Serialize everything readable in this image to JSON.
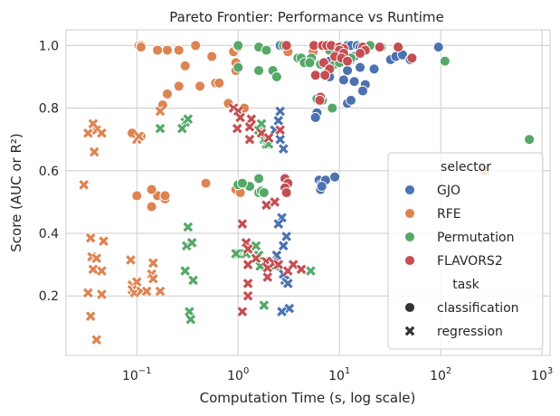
{
  "chart_data": {
    "type": "scatter",
    "title": "Pareto Frontier: Performance vs Runtime",
    "xlabel": "Computation Time (s, log scale)",
    "ylabel": "Score (AUC or R²)",
    "x_scale": "log",
    "xlim": [
      0.02,
      1200
    ],
    "ylim": [
      0.01,
      1.05
    ],
    "x_ticks": [
      {
        "value": 0.1,
        "base": "10",
        "exp": "−1"
      },
      {
        "value": 1,
        "base": "10",
        "exp": "0"
      },
      {
        "value": 10,
        "base": "10",
        "exp": "1"
      },
      {
        "value": 100,
        "base": "10",
        "exp": "2"
      },
      {
        "value": 1000,
        "base": "10",
        "exp": "3"
      }
    ],
    "y_ticks": [
      "0.2",
      "0.4",
      "0.6",
      "0.8",
      "1.0"
    ],
    "grid": true,
    "legend": {
      "placement": "lower-right",
      "hue_title": "selector",
      "style_title": "task",
      "styles": [
        {
          "name": "classification",
          "marker": "circle"
        },
        {
          "name": "regression",
          "marker": "x"
        }
      ]
    },
    "series": [
      {
        "name": "GJO",
        "color": "#4c72b0",
        "classification": [
          [
            2.6,
            1.0
          ],
          [
            12,
            1.0
          ],
          [
            13,
            1.0
          ],
          [
            15,
            1.0
          ],
          [
            16,
            0.995
          ],
          [
            18,
            0.995
          ],
          [
            95,
            0.995
          ],
          [
            10,
            0.975
          ],
          [
            11,
            0.985
          ],
          [
            13,
            0.955
          ],
          [
            14,
            0.965
          ],
          [
            8,
            0.95
          ],
          [
            12,
            0.92
          ],
          [
            16,
            0.93
          ],
          [
            22,
            0.925
          ],
          [
            32,
            0.955
          ],
          [
            36,
            0.965
          ],
          [
            42,
            0.97
          ],
          [
            50,
            0.955
          ],
          [
            8,
            0.9
          ],
          [
            14,
            0.885
          ],
          [
            18,
            0.875
          ],
          [
            17,
            0.855
          ],
          [
            11,
            0.89
          ],
          [
            6,
            0.785
          ],
          [
            12,
            0.815
          ],
          [
            13,
            0.825
          ],
          [
            5.8,
            0.77
          ],
          [
            6.3,
            0.57
          ],
          [
            6.6,
            0.555
          ],
          [
            7.3,
            0.57
          ],
          [
            9,
            0.58
          ],
          [
            6.5,
            0.54
          ],
          [
            6.7,
            0.55
          ]
        ],
        "regression": [
          [
            2.6,
            0.79
          ],
          [
            2.5,
            0.76
          ],
          [
            2.3,
            0.73
          ],
          [
            2.6,
            0.7
          ],
          [
            2.8,
            0.67
          ],
          [
            2.7,
            0.45
          ],
          [
            2.5,
            0.43
          ],
          [
            3,
            0.39
          ],
          [
            2.8,
            0.36
          ],
          [
            2.4,
            0.33
          ],
          [
            2.2,
            0.31
          ],
          [
            2.9,
            0.25
          ],
          [
            3.1,
            0.24
          ],
          [
            3.2,
            0.16
          ],
          [
            2.7,
            0.15
          ],
          [
            2.8,
            0.27
          ]
        ]
      },
      {
        "name": "RFE",
        "color": "#dd8452",
        "classification": [
          [
            0.105,
            1.0
          ],
          [
            0.11,
            1.0
          ],
          [
            0.2,
            0.985
          ],
          [
            0.26,
            0.985
          ],
          [
            0.38,
            1.0
          ],
          [
            0.11,
            0.995
          ],
          [
            0.16,
            0.985
          ],
          [
            0.55,
            0.965
          ],
          [
            0.9,
            0.98
          ],
          [
            1.0,
            0.995
          ],
          [
            0.95,
            0.945
          ],
          [
            0.3,
            0.935
          ],
          [
            0.95,
            0.92
          ],
          [
            0.6,
            0.88
          ],
          [
            0.65,
            0.88
          ],
          [
            0.26,
            0.87
          ],
          [
            0.42,
            0.87
          ],
          [
            0.2,
            0.845
          ],
          [
            0.18,
            0.81
          ],
          [
            0.8,
            0.815
          ],
          [
            1.15,
            0.8
          ],
          [
            0.09,
            0.72
          ],
          [
            0.11,
            0.71
          ],
          [
            0.48,
            0.56
          ],
          [
            0.1,
            0.52
          ],
          [
            0.16,
            0.52
          ],
          [
            0.14,
            0.54
          ],
          [
            0.19,
            0.51
          ],
          [
            0.19,
            0.52
          ],
          [
            0.14,
            0.485
          ],
          [
            0.95,
            0.54
          ],
          [
            1.05,
            0.53
          ],
          [
            3.1,
            0.98
          ],
          [
            5.5,
            0.98
          ],
          [
            270,
            0.6
          ]
        ],
        "regression": [
          [
            0.033,
            0.72
          ],
          [
            0.04,
            0.73
          ],
          [
            0.037,
            0.75
          ],
          [
            0.045,
            0.72
          ],
          [
            0.038,
            0.66
          ],
          [
            0.03,
            0.555
          ],
          [
            0.1,
            0.7
          ],
          [
            0.105,
            0.71
          ],
          [
            0.17,
            0.79
          ],
          [
            0.035,
            0.385
          ],
          [
            0.047,
            0.375
          ],
          [
            0.036,
            0.325
          ],
          [
            0.04,
            0.32
          ],
          [
            0.045,
            0.28
          ],
          [
            0.037,
            0.285
          ],
          [
            0.087,
            0.315
          ],
          [
            0.145,
            0.305
          ],
          [
            0.09,
            0.235
          ],
          [
            0.1,
            0.245
          ],
          [
            0.14,
            0.27
          ],
          [
            0.145,
            0.255
          ],
          [
            0.09,
            0.22
          ],
          [
            0.095,
            0.21
          ],
          [
            0.11,
            0.215
          ],
          [
            0.125,
            0.215
          ],
          [
            0.17,
            0.215
          ],
          [
            0.033,
            0.21
          ],
          [
            0.045,
            0.205
          ],
          [
            0.035,
            0.135
          ],
          [
            0.04,
            0.06
          ]
        ]
      },
      {
        "name": "Permutation",
        "color": "#55a868",
        "classification": [
          [
            1.0,
            1.0
          ],
          [
            1.6,
            0.995
          ],
          [
            2.8,
            1.0
          ],
          [
            20,
            1.0
          ],
          [
            26,
            0.995
          ],
          [
            8,
            0.985
          ],
          [
            1.9,
            0.985
          ],
          [
            3.9,
            0.96
          ],
          [
            4.2,
            0.96
          ],
          [
            5.3,
            0.96
          ],
          [
            1.6,
            0.92
          ],
          [
            2.2,
            0.92
          ],
          [
            4.5,
            0.945
          ],
          [
            5.1,
            0.945
          ],
          [
            6.5,
            0.94
          ],
          [
            9,
            0.94
          ],
          [
            11,
            0.965
          ],
          [
            13,
            0.96
          ],
          [
            10,
            0.945
          ],
          [
            1.0,
            0.93
          ],
          [
            2.4,
            0.9
          ],
          [
            110,
            0.95
          ],
          [
            750,
            0.7
          ],
          [
            6,
            0.83
          ],
          [
            6.8,
            0.825
          ],
          [
            8.5,
            0.8
          ],
          [
            1.3,
            0.55
          ],
          [
            1.6,
            0.575
          ],
          [
            1.0,
            0.555
          ],
          [
            1.1,
            0.56
          ],
          [
            1.6,
            0.53
          ],
          [
            1.7,
            0.535
          ],
          [
            1.8,
            0.53
          ]
        ],
        "regression": [
          [
            0.17,
            0.735
          ],
          [
            0.3,
            0.755
          ],
          [
            0.32,
            0.765
          ],
          [
            0.28,
            0.735
          ],
          [
            1.6,
            0.73
          ],
          [
            1.8,
            0.7
          ],
          [
            1.7,
            0.75
          ],
          [
            1.9,
            0.685
          ],
          [
            2.0,
            0.685
          ],
          [
            1.5,
            0.36
          ],
          [
            0.32,
            0.42
          ],
          [
            0.31,
            0.36
          ],
          [
            0.35,
            0.37
          ],
          [
            1.2,
            0.335
          ],
          [
            1.0,
            0.335
          ],
          [
            0.95,
            0.335
          ],
          [
            0.3,
            0.28
          ],
          [
            0.36,
            0.25
          ],
          [
            0.33,
            0.15
          ],
          [
            0.34,
            0.125
          ],
          [
            1.6,
            0.33
          ],
          [
            1.7,
            0.31
          ],
          [
            1.8,
            0.31
          ],
          [
            1.5,
            0.32
          ],
          [
            1.65,
            0.295
          ],
          [
            2.0,
            0.3
          ],
          [
            2.3,
            0.295
          ],
          [
            5.2,
            0.28
          ],
          [
            1.8,
            0.17
          ]
        ]
      },
      {
        "name": "FLAVORS2",
        "color": "#c44e52",
        "classification": [
          [
            3.0,
            1.0
          ],
          [
            5.6,
            1.0
          ],
          [
            6.8,
            1.0
          ],
          [
            7.5,
            1.0
          ],
          [
            8.3,
            1.0
          ],
          [
            10,
            0.995
          ],
          [
            11,
            0.99
          ],
          [
            17,
            0.995
          ],
          [
            18,
            0.985
          ],
          [
            25,
            0.995
          ],
          [
            38,
            0.995
          ],
          [
            52,
            0.96
          ],
          [
            10,
            0.985
          ],
          [
            11,
            0.975
          ],
          [
            9,
            0.965
          ],
          [
            10.5,
            0.96
          ],
          [
            7,
            0.945
          ],
          [
            16,
            0.975
          ],
          [
            8,
            0.925
          ],
          [
            5.8,
            0.905
          ],
          [
            7.2,
            0.905
          ],
          [
            12,
            0.95
          ],
          [
            6.5,
            0.835
          ],
          [
            6.4,
            0.825
          ],
          [
            2.9,
            0.575
          ],
          [
            3.1,
            0.56
          ],
          [
            2.9,
            0.545
          ],
          [
            3.0,
            0.53
          ]
        ],
        "regression": [
          [
            0.9,
            0.8
          ],
          [
            1.0,
            0.79
          ],
          [
            1.05,
            0.77
          ],
          [
            1.35,
            0.765
          ],
          [
            0.98,
            0.735
          ],
          [
            1.3,
            0.74
          ],
          [
            1.3,
            0.7
          ],
          [
            1.7,
            0.72
          ],
          [
            2.0,
            0.705
          ],
          [
            2.6,
            0.73
          ],
          [
            2.3,
            0.5
          ],
          [
            1.9,
            0.49
          ],
          [
            1.1,
            0.43
          ],
          [
            1.2,
            0.37
          ],
          [
            1.25,
            0.35
          ],
          [
            1.5,
            0.32
          ],
          [
            1.25,
            0.3
          ],
          [
            1.9,
            0.31
          ],
          [
            1.95,
            0.29
          ],
          [
            2.25,
            0.305
          ],
          [
            2.5,
            0.3
          ],
          [
            3.1,
            0.28
          ],
          [
            3.5,
            0.3
          ],
          [
            4.2,
            0.285
          ],
          [
            1.95,
            0.26
          ],
          [
            1.25,
            0.24
          ],
          [
            1.25,
            0.2
          ],
          [
            1.1,
            0.15
          ]
        ]
      }
    ]
  }
}
